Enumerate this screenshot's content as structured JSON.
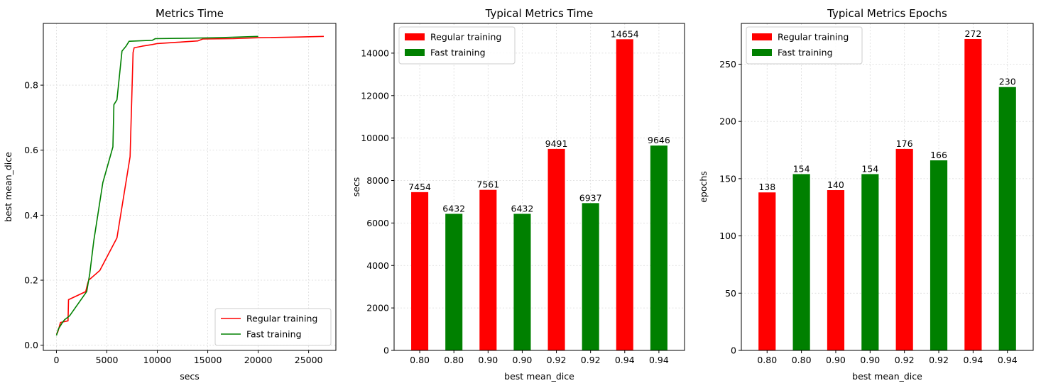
{
  "chart_data": [
    {
      "type": "line",
      "title": "Metrics Time",
      "xlabel": "secs",
      "ylabel": "best mean_dice",
      "xlim": [
        -1300,
        27700
      ],
      "ylim": [
        -0.016,
        0.99
      ],
      "xticks": [
        0,
        5000,
        10000,
        15000,
        20000,
        25000
      ],
      "xtick_labels": [
        "0",
        "5000",
        "10000",
        "15000",
        "20000",
        "25000"
      ],
      "yticks": [
        0.0,
        0.2,
        0.4,
        0.6,
        0.8
      ],
      "ytick_labels": [
        "0.0",
        "0.2",
        "0.4",
        "0.6",
        "0.8"
      ],
      "grid": true,
      "legend": "lower right",
      "series": [
        {
          "name": "Regular training",
          "color": "#ff0000",
          "x": [
            0,
            130,
            400,
            700,
            1150,
            1200,
            2900,
            3100,
            3200,
            4300,
            6000,
            7300,
            7600,
            7700,
            8500,
            9500,
            10000,
            12000,
            14000,
            14500,
            17500,
            20000,
            24000,
            26500
          ],
          "y": [
            0.035,
            0.04,
            0.07,
            0.072,
            0.075,
            0.14,
            0.165,
            0.19,
            0.2,
            0.23,
            0.33,
            0.58,
            0.9,
            0.915,
            0.92,
            0.925,
            0.928,
            0.932,
            0.936,
            0.942,
            0.943,
            0.946,
            0.948,
            0.95
          ]
        },
        {
          "name": "Fast training",
          "color": "#008000",
          "x": [
            0,
            200,
            300,
            600,
            800,
            1300,
            3000,
            3300,
            3700,
            4600,
            5600,
            5700,
            6000,
            6500,
            6900,
            7200,
            9500,
            9800,
            12000,
            16000,
            20000
          ],
          "y": [
            0.03,
            0.05,
            0.055,
            0.07,
            0.078,
            0.09,
            0.165,
            0.22,
            0.32,
            0.5,
            0.61,
            0.74,
            0.755,
            0.905,
            0.92,
            0.935,
            0.938,
            0.943,
            0.944,
            0.946,
            0.95
          ]
        }
      ]
    },
    {
      "type": "bar",
      "title": "Typical Metrics Time",
      "xlabel": "best mean_dice",
      "ylabel": "secs",
      "ylim": [
        0,
        15400
      ],
      "yticks": [
        0,
        2000,
        4000,
        6000,
        8000,
        10000,
        12000,
        14000
      ],
      "ytick_labels": [
        "0",
        "2000",
        "4000",
        "6000",
        "8000",
        "10000",
        "12000",
        "14000"
      ],
      "categories": [
        "0.80",
        "0.80",
        "0.90",
        "0.90",
        "0.92",
        "0.92",
        "0.94",
        "0.94"
      ],
      "values": [
        7454,
        6432,
        7561,
        6432,
        9491,
        6937,
        14654,
        9646
      ],
      "value_labels": [
        "7454",
        "6432",
        "7561",
        "6432",
        "9491",
        "6937",
        "14654",
        "9646"
      ],
      "bar_series": [
        0,
        1,
        0,
        1,
        0,
        1,
        0,
        1
      ],
      "grid": true,
      "legend": "upper left",
      "series": [
        {
          "name": "Regular training",
          "color": "#ff0000"
        },
        {
          "name": "Fast training",
          "color": "#008000"
        }
      ]
    },
    {
      "type": "bar",
      "title": "Typical Metrics Epochs",
      "xlabel": "best mean_dice",
      "ylabel": "epochs",
      "ylim": [
        0,
        285.6
      ],
      "yticks": [
        0,
        50,
        100,
        150,
        200,
        250
      ],
      "ytick_labels": [
        "0",
        "50",
        "100",
        "150",
        "200",
        "250"
      ],
      "categories": [
        "0.80",
        "0.80",
        "0.90",
        "0.90",
        "0.92",
        "0.92",
        "0.94",
        "0.94"
      ],
      "values": [
        138,
        154,
        140,
        154,
        176,
        166,
        272,
        230
      ],
      "value_labels": [
        "138",
        "154",
        "140",
        "154",
        "176",
        "166",
        "272",
        "230"
      ],
      "bar_series": [
        0,
        1,
        0,
        1,
        0,
        1,
        0,
        1
      ],
      "grid": true,
      "legend": "upper left",
      "series": [
        {
          "name": "Regular training",
          "color": "#ff0000"
        },
        {
          "name": "Fast training",
          "color": "#008000"
        }
      ]
    }
  ]
}
